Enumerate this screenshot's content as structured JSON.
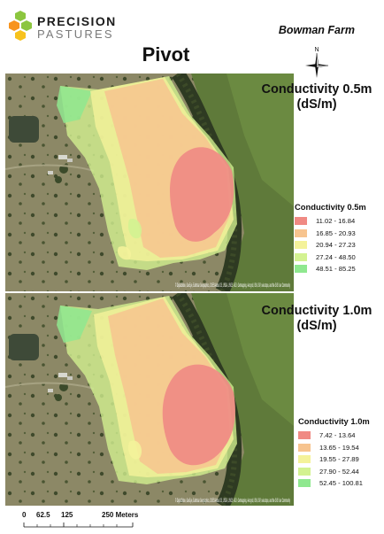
{
  "header": {
    "logo_line1": "PRECISION",
    "logo_line2": "PASTURES",
    "farm_name": "Bowman Farm",
    "field_name": "Pivot",
    "north_label": "N"
  },
  "maps": [
    {
      "title_line1": "Conductivity 0.5m",
      "title_line2": "(dS/m)",
      "legend_title": "Conductivity 0.5m",
      "classes": [
        {
          "range": "11.02 - 16.84",
          "color": "#f08a84"
        },
        {
          "range": "16.85 - 20.93",
          "color": "#f7c48f"
        },
        {
          "range": "20.94 - 27.23",
          "color": "#f4f29a"
        },
        {
          "range": "27.24 - 48.50",
          "color": "#d3f291"
        },
        {
          "range": "48.51 - 85.25",
          "color": "#8fe88f"
        }
      ],
      "attribution": "© DigitalGlobe, GeoEye, Earthstar Geographics, CNES/Airbus DS, USDA, USGS, AEX, Getmapping, Aerogrid, IGN, IGP, swisstopo, and the GIS User Community"
    },
    {
      "title_line1": "Conductivity 1.0m",
      "title_line2": "(dS/m)",
      "legend_title": "Conductivity 1.0m",
      "classes": [
        {
          "range": "7.42 - 13.64",
          "color": "#f08a84"
        },
        {
          "range": "13.65 - 19.54",
          "color": "#f7c48f"
        },
        {
          "range": "19.55 - 27.89",
          "color": "#f4f29a"
        },
        {
          "range": "27.90 - 52.44",
          "color": "#d3f291"
        },
        {
          "range": "52.45 - 100.81",
          "color": "#8fe88f"
        }
      ],
      "attribution": "© DigitalGlobe, GeoEye, Earthstar Geographics, CNES/Airbus DS, USDA, USGS, AEX, Getmapping, Aerogrid, IGN, IGP, swisstopo, and the GIS User Community"
    }
  ],
  "scalebar": {
    "ticks": [
      "0",
      "62.5",
      "125",
      "250 Meters"
    ]
  }
}
